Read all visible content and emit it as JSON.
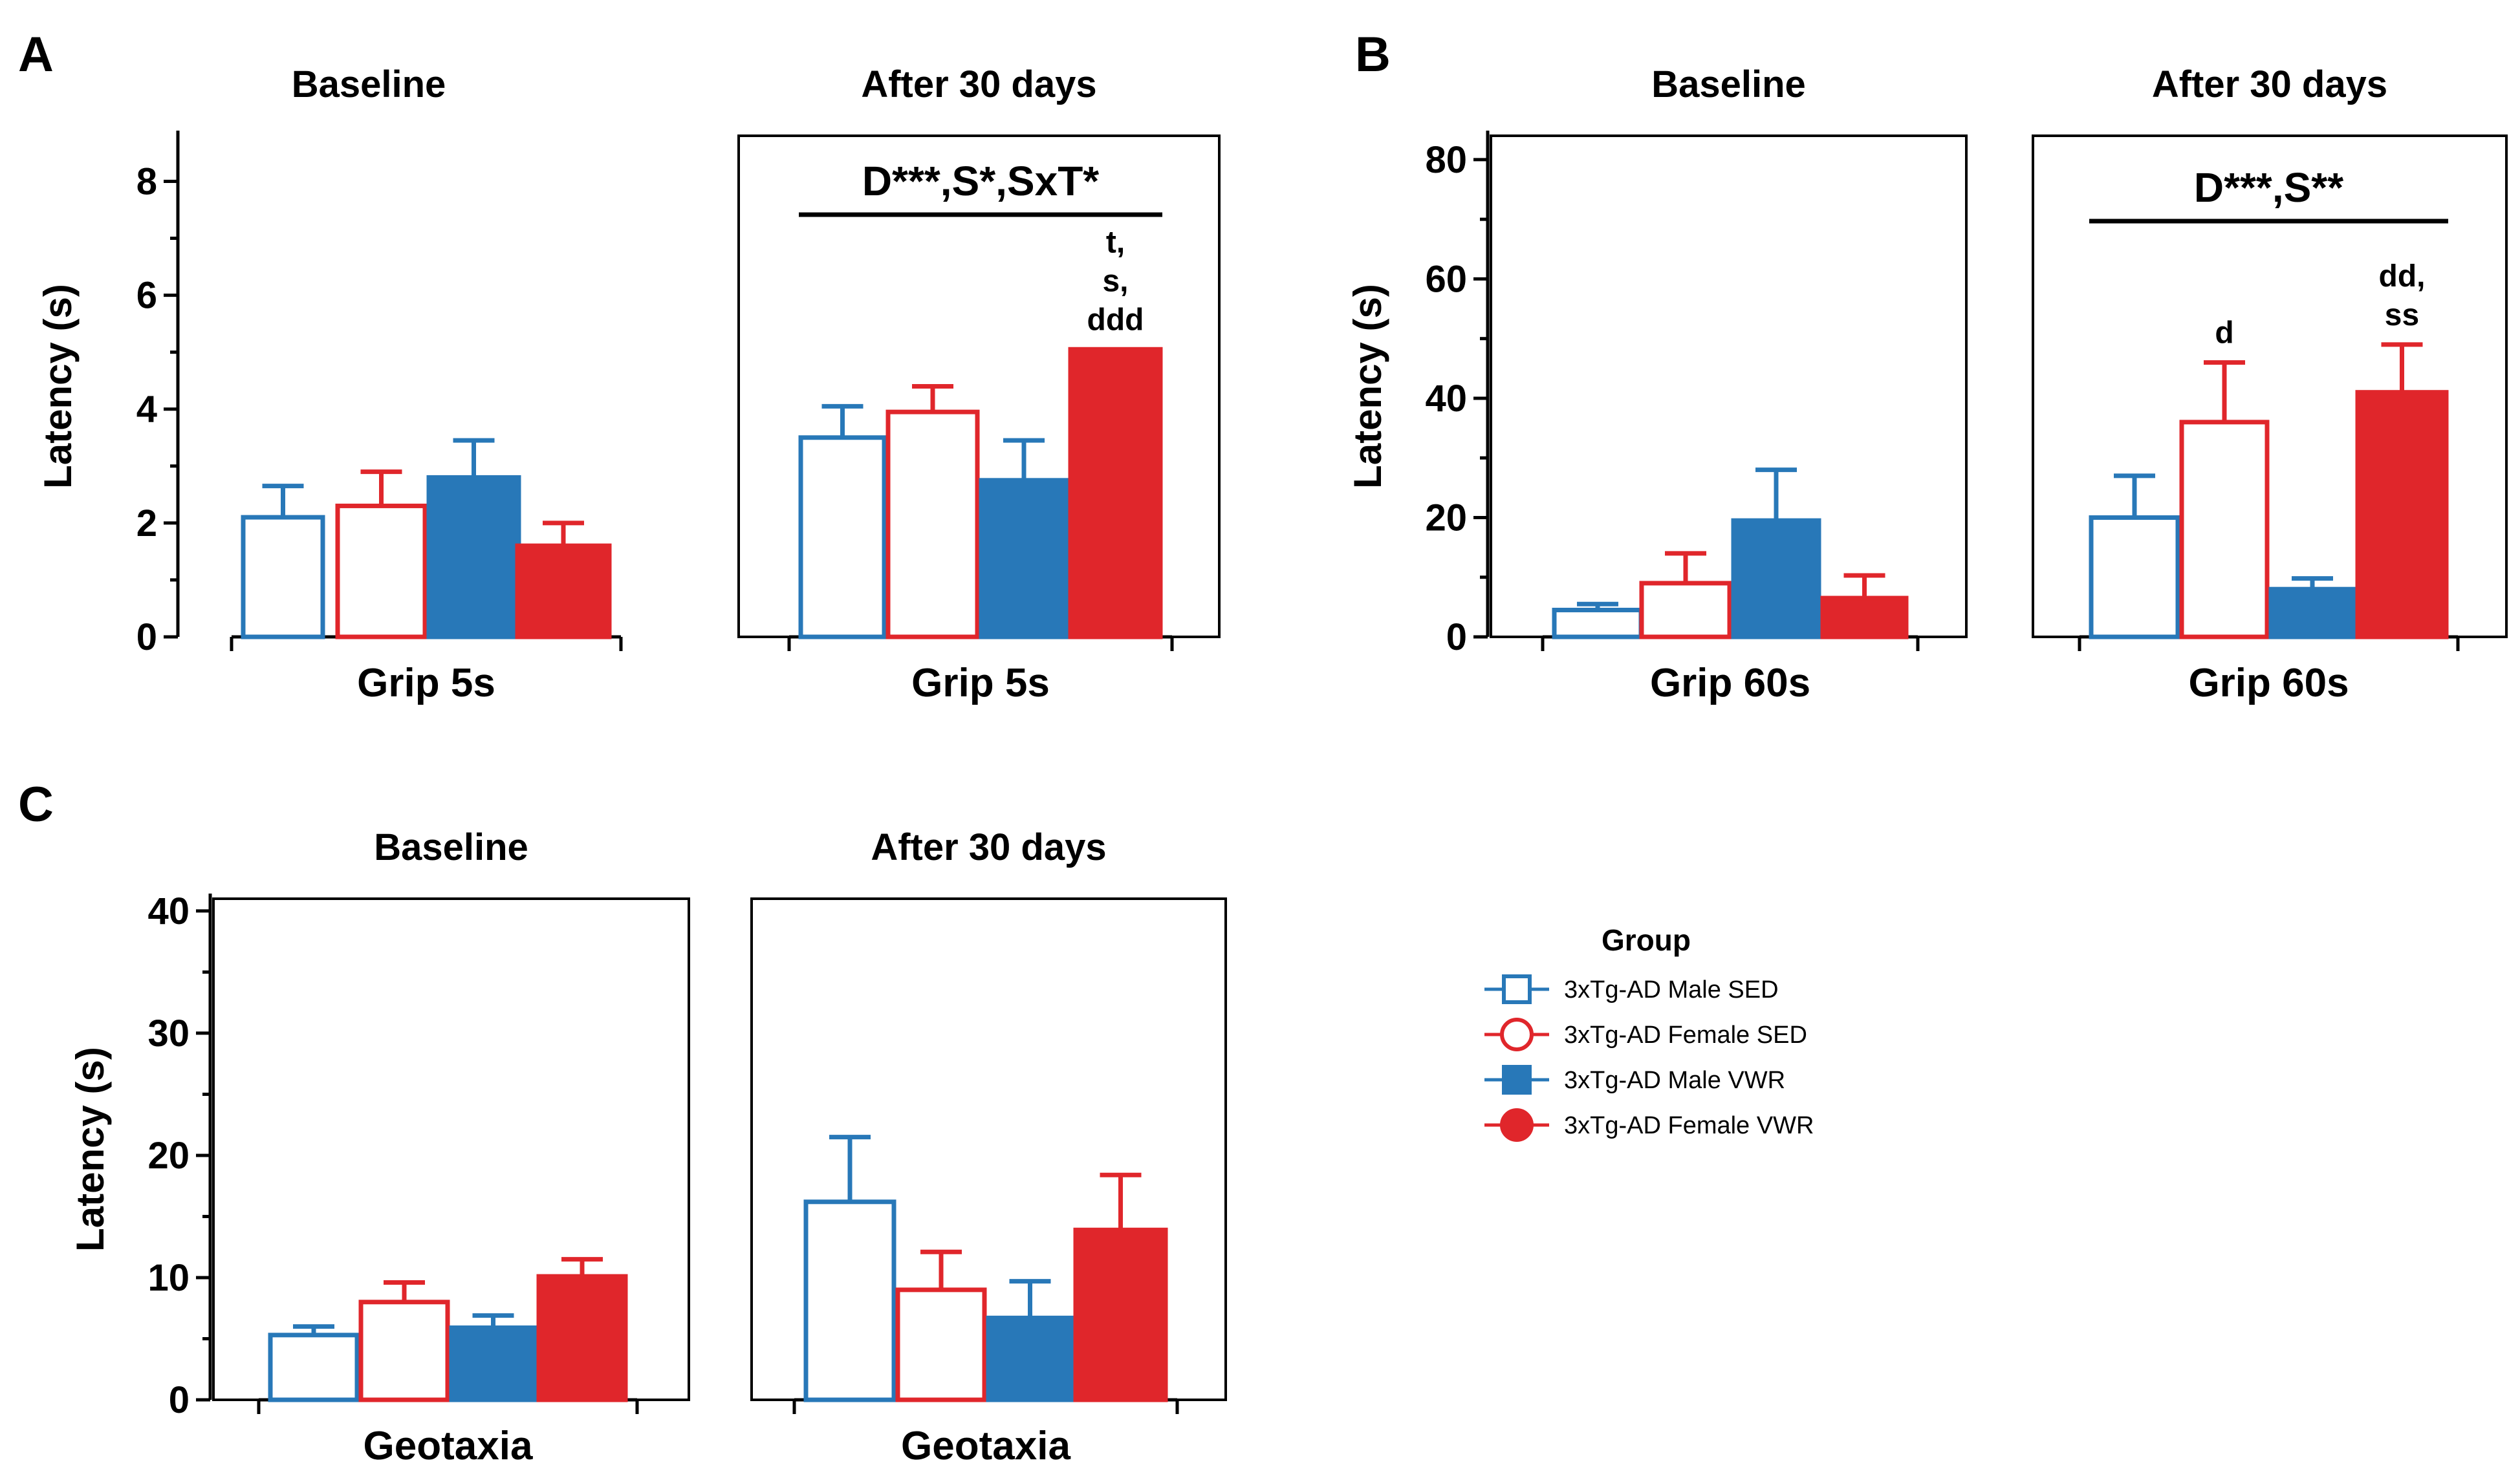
{
  "panel_letters": [
    "A",
    "B",
    "C"
  ],
  "legend": {
    "title": "Group",
    "items": [
      {
        "label": "3xTg-AD Male SED",
        "color": "#2878b8",
        "marker": "square",
        "filled": false
      },
      {
        "label": "3xTg-AD Female SED",
        "color": "#e0262b",
        "marker": "circle",
        "filled": false
      },
      {
        "label": "3xTg-AD Male VWR",
        "color": "#2878b8",
        "marker": "square",
        "filled": true
      },
      {
        "label": "3xTg-AD Female VWR",
        "color": "#e0262b",
        "marker": "circle",
        "filled": true
      }
    ]
  },
  "colors": {
    "blue": "#2878b8",
    "red": "#e0262b"
  },
  "chart_data": [
    {
      "type": "bar",
      "panel": "A",
      "title": "Baseline",
      "xlabel": "Grip 5s",
      "ylabel": "Latency (s)",
      "ylim": [
        0,
        8.8
      ],
      "yticks": [
        0,
        2,
        4,
        6,
        8
      ],
      "groups": [
        "3xTg-AD Male SED",
        "3xTg-AD Female SED",
        "3xTg-AD Male VWR",
        "3xTg-AD Female VWR"
      ],
      "values": [
        2.1,
        2.3,
        2.8,
        1.6
      ],
      "errors": [
        0.55,
        0.6,
        0.65,
        0.4
      ],
      "stat": "",
      "annotations": [
        "",
        "",
        "",
        ""
      ]
    },
    {
      "type": "bar",
      "panel": "A",
      "title": "After 30 days",
      "xlabel": "Grip 5s",
      "ylabel": "",
      "ylim": [
        0,
        8.8
      ],
      "yticks": [],
      "groups": [
        "3xTg-AD Male SED",
        "3xTg-AD Female SED",
        "3xTg-AD Male VWR",
        "3xTg-AD Female VWR"
      ],
      "values": [
        3.5,
        3.95,
        2.75,
        5.05
      ],
      "errors": [
        0.55,
        0.45,
        0.7,
        0
      ],
      "stat": "D***,S*,SxT*",
      "annotations": [
        "",
        "",
        "",
        "t,|s,|ddd"
      ]
    },
    {
      "type": "bar",
      "panel": "B",
      "title": "Baseline",
      "xlabel": "Grip 60s",
      "ylabel": "Latency (s)",
      "ylim": [
        0,
        84
      ],
      "yticks": [
        0,
        20,
        40,
        60,
        80
      ],
      "groups": [
        "3xTg-AD Male SED",
        "3xTg-AD Female SED",
        "3xTg-AD Male VWR",
        "3xTg-AD Female VWR"
      ],
      "values": [
        4.5,
        9,
        19.5,
        6.5
      ],
      "errors": [
        1,
        5,
        8.5,
        3.8
      ],
      "stat": "",
      "annotations": [
        "",
        "",
        "",
        ""
      ]
    },
    {
      "type": "bar",
      "panel": "B",
      "title": "After 30 days",
      "xlabel": "Grip 60s",
      "ylabel": "",
      "ylim": [
        0,
        84
      ],
      "yticks": [],
      "groups": [
        "3xTg-AD Male SED",
        "3xTg-AD Female SED",
        "3xTg-AD Male VWR",
        "3xTg-AD Female VWR"
      ],
      "values": [
        20,
        36,
        8,
        41
      ],
      "errors": [
        7,
        10,
        1.8,
        8
      ],
      "stat": "D***,S**",
      "annotations": [
        "",
        "d",
        "",
        "dd,|ss"
      ]
    },
    {
      "type": "bar",
      "panel": "C",
      "title": "Baseline",
      "xlabel": "Geotaxia",
      "ylabel": "Latency (s)",
      "ylim": [
        0,
        41
      ],
      "yticks": [
        0,
        10,
        20,
        30,
        40
      ],
      "groups": [
        "3xTg-AD Male SED",
        "3xTg-AD Female SED",
        "3xTg-AD Male VWR",
        "3xTg-AD Female VWR"
      ],
      "values": [
        5.3,
        8,
        5.9,
        10.1
      ],
      "errors": [
        0.7,
        1.6,
        1,
        1.4
      ],
      "stat": "",
      "annotations": [
        "",
        "",
        "",
        ""
      ]
    },
    {
      "type": "bar",
      "panel": "C",
      "title": "After 30 days",
      "xlabel": "Geotaxia",
      "ylabel": "",
      "ylim": [
        0,
        41
      ],
      "yticks": [],
      "groups": [
        "3xTg-AD Male SED",
        "3xTg-AD Female SED",
        "3xTg-AD Male VWR",
        "3xTg-AD Female VWR"
      ],
      "values": [
        16.2,
        9,
        6.7,
        13.9
      ],
      "errors": [
        5.3,
        3.1,
        3,
        4.5
      ],
      "stat": "",
      "annotations": [
        "",
        "",
        "",
        ""
      ]
    }
  ]
}
